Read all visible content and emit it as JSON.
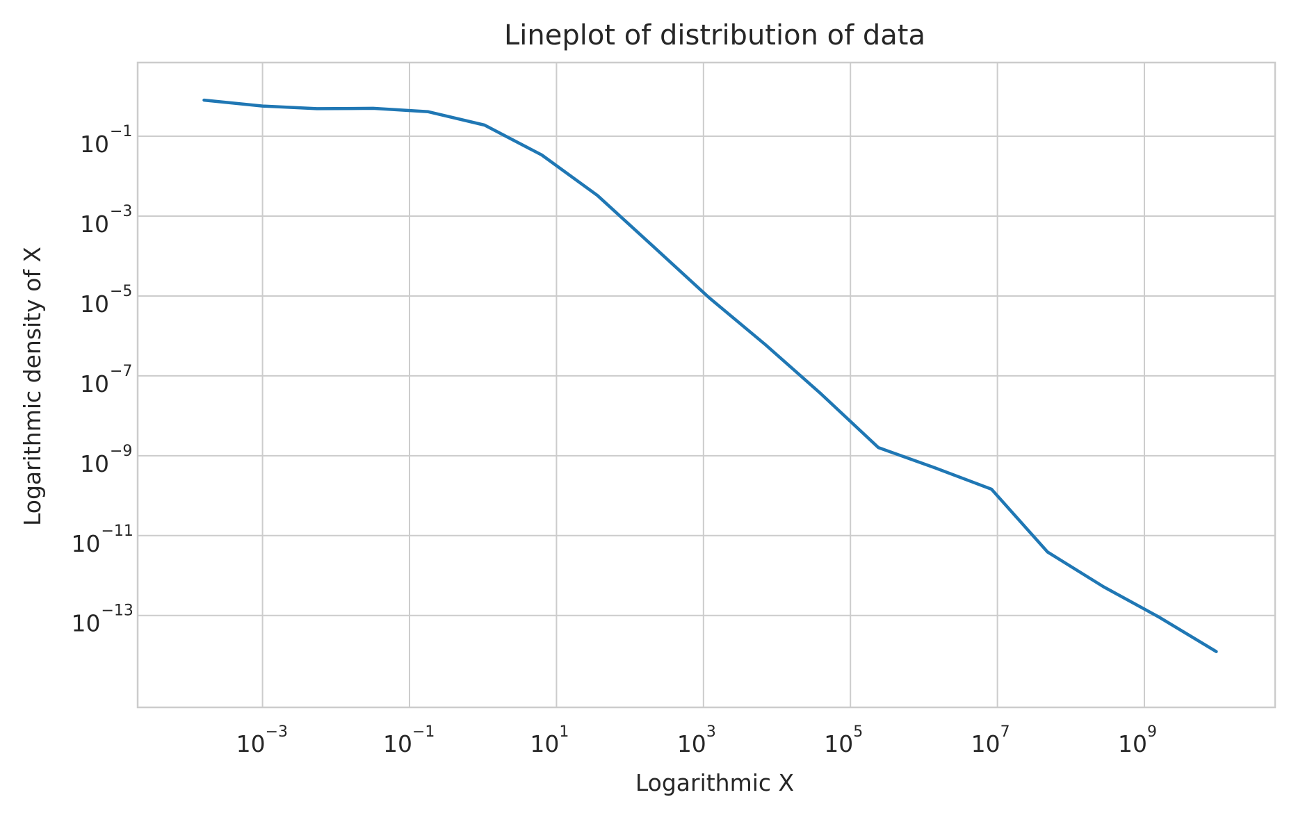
{
  "chart_data": {
    "type": "line",
    "title": "Lineplot of distribution of data",
    "xlabel": "Logarithmic X",
    "ylabel": "Logarithmic density of X",
    "xscale": "log",
    "yscale": "log",
    "xlim": [
      2e-05,
      60000000000.0
    ],
    "ylim": [
      5e-16,
      7
    ],
    "grid": true,
    "line_color": "#1f77b4",
    "x_ticks": [
      {
        "base": "10",
        "exp": "−3",
        "value": 0.001
      },
      {
        "base": "10",
        "exp": "−1",
        "value": 0.1
      },
      {
        "base": "10",
        "exp": "1",
        "value": 10
      },
      {
        "base": "10",
        "exp": "3",
        "value": 1000
      },
      {
        "base": "10",
        "exp": "5",
        "value": 100000
      },
      {
        "base": "10",
        "exp": "7",
        "value": 10000000
      },
      {
        "base": "10",
        "exp": "9",
        "value": 1000000000
      }
    ],
    "y_ticks": [
      {
        "base": "10",
        "exp": "−1",
        "value": 0.1
      },
      {
        "base": "10",
        "exp": "−3",
        "value": 0.001
      },
      {
        "base": "10",
        "exp": "−5",
        "value": 1e-05
      },
      {
        "base": "10",
        "exp": "−7",
        "value": 1e-07
      },
      {
        "base": "10",
        "exp": "−9",
        "value": 1e-09
      },
      {
        "base": "10",
        "exp": "−11",
        "value": 1e-11
      },
      {
        "base": "10",
        "exp": "−13",
        "value": 1e-13
      }
    ],
    "series": [
      {
        "x": [
          0.00016,
          0.001,
          0.0055,
          0.032,
          0.18,
          1.05,
          6.3,
          36,
          210,
          1200,
          7000,
          40000,
          240000,
          1400000,
          8300000,
          48000000,
          280000000,
          1600000000,
          9500000000
        ],
        "y": [
          0.8,
          0.57,
          0.49,
          0.5,
          0.41,
          0.19,
          0.034,
          0.0033,
          0.00017,
          9e-06,
          6e-07,
          3.5e-08,
          1.6e-09,
          5e-10,
          1.45e-10,
          3.9e-12,
          5.2e-13,
          9e-14,
          1.25e-14
        ]
      }
    ]
  }
}
